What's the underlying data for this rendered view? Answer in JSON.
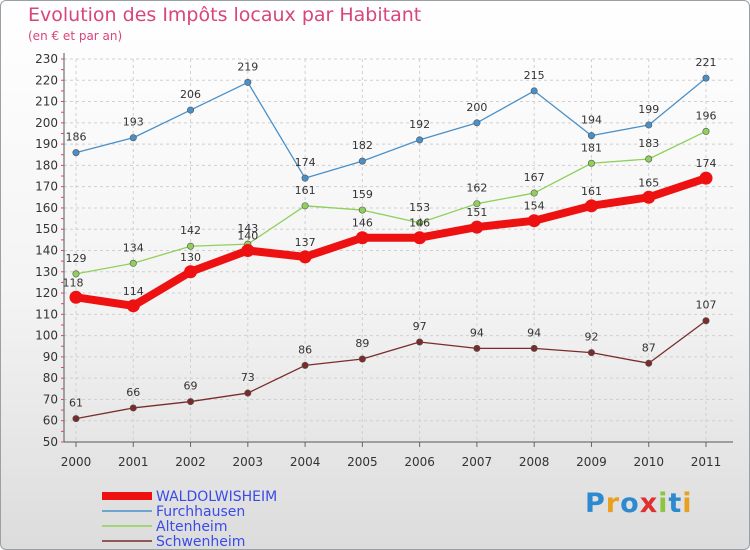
{
  "title": "Evolution des Impôts locaux par Habitant",
  "subtitle": "(en € et par an)",
  "logo": {
    "text": "Proxiti",
    "colors": [
      "#2d8ad0",
      "#e8a020",
      "#2d8ad0",
      "#e03030",
      "#8cc640",
      "#2d8ad0",
      "#e8a020"
    ]
  },
  "chart_data": {
    "type": "line",
    "title": "Evolution des Impôts locaux par Habitant",
    "subtitle": "(en € et par an)",
    "xlabel": "",
    "ylabel": "",
    "categories": [
      "2000",
      "2001",
      "2002",
      "2003",
      "2004",
      "2005",
      "2006",
      "2007",
      "2008",
      "2009",
      "2010",
      "2011"
    ],
    "ylim": [
      50,
      230
    ],
    "yticks": [
      50,
      60,
      70,
      80,
      90,
      100,
      110,
      120,
      130,
      140,
      150,
      160,
      170,
      180,
      190,
      200,
      210,
      220,
      230
    ],
    "grid": true,
    "legend_position": "bottom-left",
    "series": [
      {
        "name": "Furchhausen",
        "color": "#4a90c8",
        "values": [
          186,
          193,
          206,
          219,
          174,
          182,
          192,
          200,
          215,
          194,
          199,
          221
        ]
      },
      {
        "name": "Altenheim",
        "color": "#8fd05a",
        "values": [
          129,
          134,
          142,
          143,
          161,
          159,
          153,
          162,
          167,
          181,
          183,
          196
        ]
      },
      {
        "name": "Schwenheim",
        "color": "#7a2c2c",
        "values": [
          61,
          66,
          69,
          73,
          86,
          89,
          97,
          94,
          94,
          92,
          87,
          107
        ]
      },
      {
        "name": "WALDOLWISHEIM",
        "color": "#ee1111",
        "values": [
          118,
          114,
          130,
          140,
          137,
          146,
          146,
          151,
          154,
          161,
          165,
          174
        ]
      }
    ],
    "legend": [
      {
        "name": "WALDOLWISHEIM",
        "color": "#ee1111",
        "text_color": "#3a4be8"
      },
      {
        "name": "Furchhausen",
        "color": "#4a90c8",
        "text_color": "#3a4be8"
      },
      {
        "name": "Altenheim",
        "color": "#8fd05a",
        "text_color": "#3a4be8"
      },
      {
        "name": "Schwenheim",
        "color": "#7a2c2c",
        "text_color": "#3a4be8"
      }
    ]
  }
}
